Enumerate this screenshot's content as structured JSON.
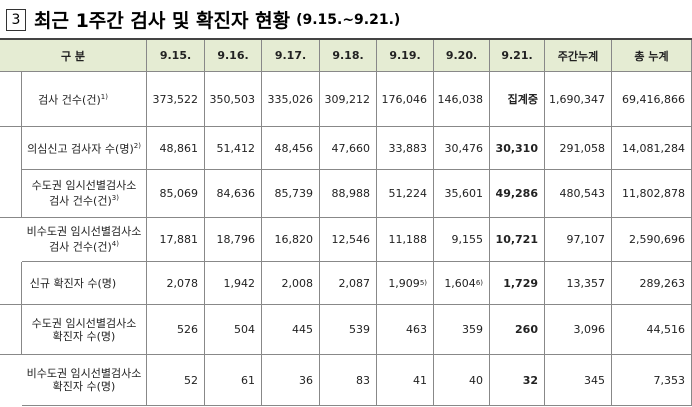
{
  "header": {
    "number": "3",
    "title": "최근 1주간 검사 및 확진자 현황",
    "period": "(9.15.~9.21.)"
  },
  "table": {
    "columns": [
      "구 분",
      "9.15.",
      "9.16.",
      "9.17.",
      "9.18.",
      "9.19.",
      "9.20.",
      "9.21.",
      "주간누계",
      "총 누계"
    ],
    "rows": [
      {
        "label": [
          "검사 건수(건)"
        ],
        "note": "1)",
        "cells": [
          "373,522",
          "350,503",
          "335,026",
          "309,212",
          "176,046",
          "146,038",
          "집계중",
          "1,690,347",
          "69,416,866"
        ]
      },
      {
        "label": [
          "의심신고 검사자 수(명)"
        ],
        "note": "2)",
        "cells": [
          "48,861",
          "51,412",
          "48,456",
          "47,660",
          "33,883",
          "30,476",
          "30,310",
          "291,058",
          "14,081,284"
        ]
      },
      {
        "label": [
          "수도권 임시선별검사소",
          "검사 건수(건)"
        ],
        "note": "3)",
        "cells": [
          "85,069",
          "84,636",
          "85,739",
          "88,988",
          "51,224",
          "35,601",
          "49,286",
          "480,543",
          "11,802,878"
        ]
      },
      {
        "label": [
          "비수도권 임시선별검사소",
          "검사 건수(건)"
        ],
        "note": "4)",
        "cells": [
          "17,881",
          "18,796",
          "16,820",
          "12,546",
          "11,188",
          "9,155",
          "10,721",
          "97,107",
          "2,590,696"
        ]
      },
      {
        "label": [
          "신규 확진자 수(명)"
        ],
        "cells": [
          "2,078",
          "1,942",
          "2,008",
          "2,087",
          {
            "value": "1,909",
            "note": "5)"
          },
          {
            "value": "1,604",
            "note": "6)"
          },
          "1,729",
          "13,357",
          "289,263"
        ]
      },
      {
        "label": [
          "수도권 임시선별검사소",
          "확진자 수(명)"
        ],
        "cells": [
          "526",
          "504",
          "445",
          "539",
          "463",
          "359",
          "260",
          "3,096",
          "44,516"
        ]
      },
      {
        "label": [
          "비수도권 임시선별검사소",
          "확진자 수(명)"
        ],
        "cells": [
          "52",
          "61",
          "36",
          "83",
          "41",
          "40",
          "32",
          "345",
          "7,353"
        ]
      }
    ]
  }
}
